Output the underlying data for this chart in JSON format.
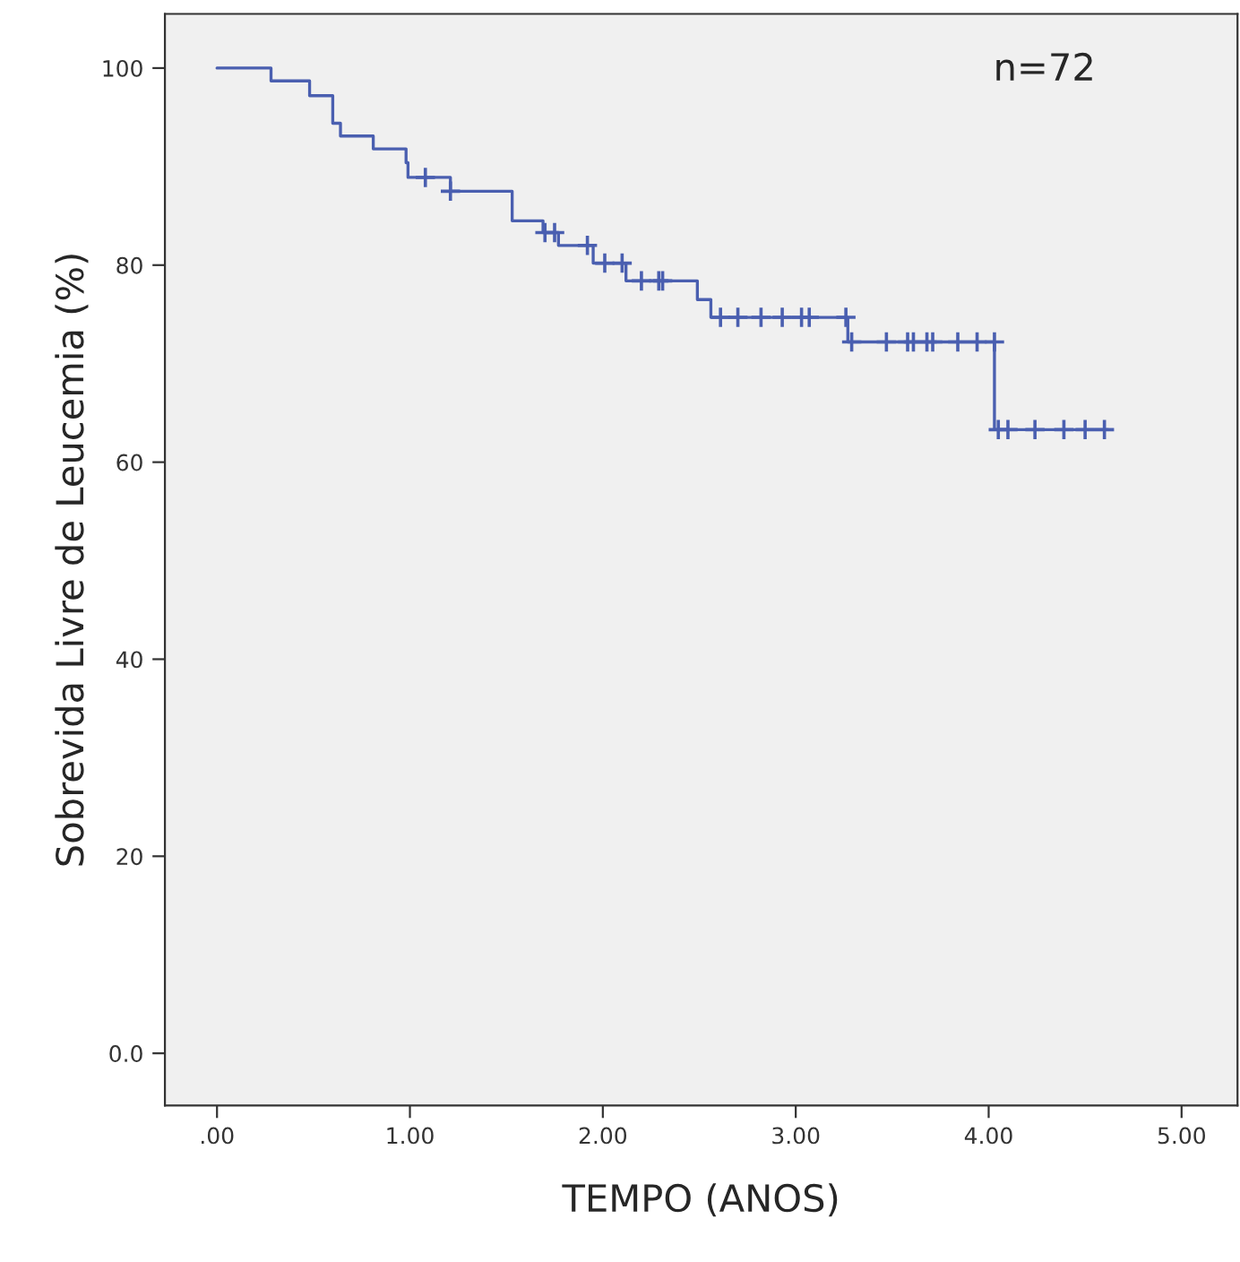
{
  "chart_data": {
    "type": "step",
    "xlabel": "TEMPO (ANOS)",
    "ylabel": "Sobrevida Livre de Leucemia (%)",
    "annotations": [
      "n=72"
    ],
    "xlim": [
      -0.27,
      5.29
    ],
    "ylim": [
      -5.3,
      105.5
    ],
    "xticks": [
      {
        "value": 0,
        "label": ".00"
      },
      {
        "value": 1,
        "label": "1.00"
      },
      {
        "value": 2,
        "label": "2.00"
      },
      {
        "value": 3,
        "label": "3.00"
      },
      {
        "value": 4,
        "label": "4.00"
      },
      {
        "value": 5,
        "label": "5.00"
      }
    ],
    "yticks": [
      {
        "value": 0,
        "label": "0.0"
      },
      20,
      40,
      60,
      80,
      100
    ],
    "grid": false,
    "legend": false,
    "series": [
      {
        "color": "#4a5fb0",
        "marker": "none",
        "x": [
          0,
          0.28,
          0.48,
          0.6,
          0.64,
          0.81,
          0.98,
          0.99,
          1.21,
          1.53,
          1.69,
          1.77,
          1.95,
          2.12,
          2.49,
          2.56,
          3.27,
          4.03,
          4.62
        ],
        "values": [
          100,
          98.7,
          97.2,
          94.4,
          93.1,
          91.8,
          90.4,
          88.9,
          87.5,
          84.5,
          83.3,
          82.0,
          80.2,
          78.4,
          76.5,
          74.7,
          72.2,
          63.3,
          63.3
        ]
      },
      {
        "type": "scatter",
        "color": "#4a5fb0",
        "marker": "cross",
        "x": [
          1.08,
          1.21,
          1.7,
          1.75,
          1.92,
          2.01,
          2.1,
          2.2,
          2.29,
          2.31,
          2.61,
          2.7,
          2.82,
          2.93,
          3.03,
          3.07,
          3.26,
          3.29,
          3.47,
          3.58,
          3.61,
          3.68,
          3.71,
          3.84,
          3.94,
          4.03,
          4.05,
          4.1,
          4.24,
          4.39,
          4.5,
          4.6
        ],
        "values": [
          88.9,
          87.5,
          83.3,
          83.3,
          82.0,
          80.2,
          80.2,
          78.4,
          78.4,
          78.4,
          74.7,
          74.7,
          74.7,
          74.7,
          74.7,
          74.7,
          74.7,
          72.2,
          72.2,
          72.2,
          72.2,
          72.2,
          72.2,
          72.2,
          72.2,
          72.2,
          63.3,
          63.3,
          63.3,
          63.3,
          63.3,
          63.3
        ]
      }
    ]
  }
}
